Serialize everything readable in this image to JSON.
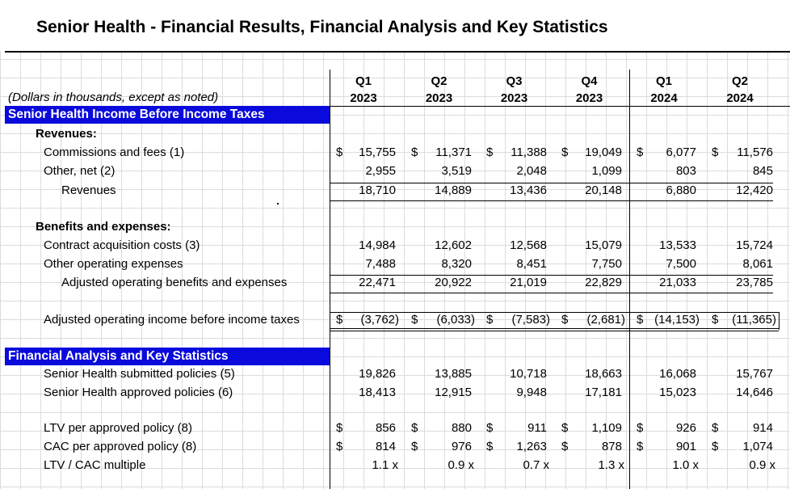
{
  "title": "Senior Health - Financial Results, Financial Analysis and Key Statistics",
  "note": "(Dollars in thousands, except as noted)",
  "columns": [
    {
      "q": "Q1",
      "y": "2023"
    },
    {
      "q": "Q2",
      "y": "2023"
    },
    {
      "q": "Q3",
      "y": "2023"
    },
    {
      "q": "Q4",
      "y": "2023"
    },
    {
      "q": "Q1",
      "y": "2024"
    },
    {
      "q": "Q2",
      "y": "2024"
    }
  ],
  "sections": {
    "income": "Senior Health Income Before Income Taxes",
    "analysis": "Financial Analysis and Key Statistics"
  },
  "rows": [
    {
      "id": "revenues-heading",
      "label": "Revenues:",
      "bold": true,
      "indent": 1
    },
    {
      "id": "commissions",
      "label": "Commissions and fees (1)",
      "indent": 2,
      "dollar": true,
      "values": [
        "15,755",
        "11,371",
        "11,388",
        "19,049",
        "6,077",
        "11,576"
      ]
    },
    {
      "id": "other-net",
      "label": "Other, net (2)",
      "indent": 2,
      "values": [
        "2,955",
        "3,519",
        "2,048",
        "1,099",
        "803",
        "845"
      ]
    },
    {
      "id": "revenues",
      "label": "Revenues",
      "indent": 3,
      "values": [
        "18,710",
        "14,889",
        "13,436",
        "20,148",
        "6,880",
        "12,420"
      ]
    },
    {
      "id": "benefits-heading",
      "label": "Benefits and expenses:",
      "bold": true,
      "indent": 1
    },
    {
      "id": "contract-acq",
      "label": "Contract acquisition costs (3)",
      "indent": 2,
      "values": [
        "14,984",
        "12,602",
        "12,568",
        "15,079",
        "13,533",
        "15,724"
      ]
    },
    {
      "id": "other-opex",
      "label": "Other operating expenses",
      "indent": 2,
      "values": [
        "7,488",
        "8,320",
        "8,451",
        "7,750",
        "7,500",
        "8,061"
      ]
    },
    {
      "id": "adj-benefits",
      "label": "Adjusted operating benefits and expenses",
      "indent": 3,
      "values": [
        "22,471",
        "20,922",
        "21,019",
        "22,829",
        "21,033",
        "23,785"
      ]
    },
    {
      "id": "adj-income",
      "label": "Adjusted operating income before income taxes",
      "indent": 2,
      "dollar": true,
      "values": [
        "(3,762)",
        "(6,033)",
        "(7,583)",
        "(2,681)",
        "(14,153)",
        "(11,365)"
      ]
    },
    {
      "id": "submitted",
      "label": "Senior Health submitted policies (5)",
      "indent": 2,
      "values": [
        "19,826",
        "13,885",
        "10,718",
        "18,663",
        "16,068",
        "15,767"
      ]
    },
    {
      "id": "approved",
      "label": "Senior Health approved policies (6)",
      "indent": 2,
      "values": [
        "18,413",
        "12,915",
        "9,948",
        "17,181",
        "15,023",
        "14,646"
      ]
    },
    {
      "id": "ltv",
      "label": "LTV per approved policy (8)",
      "indent": 2,
      "dollar": true,
      "values": [
        "856",
        "880",
        "911",
        "1,109",
        "926",
        "914"
      ]
    },
    {
      "id": "cac",
      "label": "CAC per approved policy (8)",
      "indent": 2,
      "dollar": true,
      "values": [
        "814",
        "976",
        "1,263",
        "878",
        "901",
        "1,074"
      ]
    },
    {
      "id": "multiple",
      "label": "LTV / CAC multiple",
      "indent": 2,
      "values": [
        "1.1 x",
        "0.9 x",
        "0.7 x",
        "1.3 x",
        "1.0 x",
        "0.9 x"
      ]
    }
  ]
}
